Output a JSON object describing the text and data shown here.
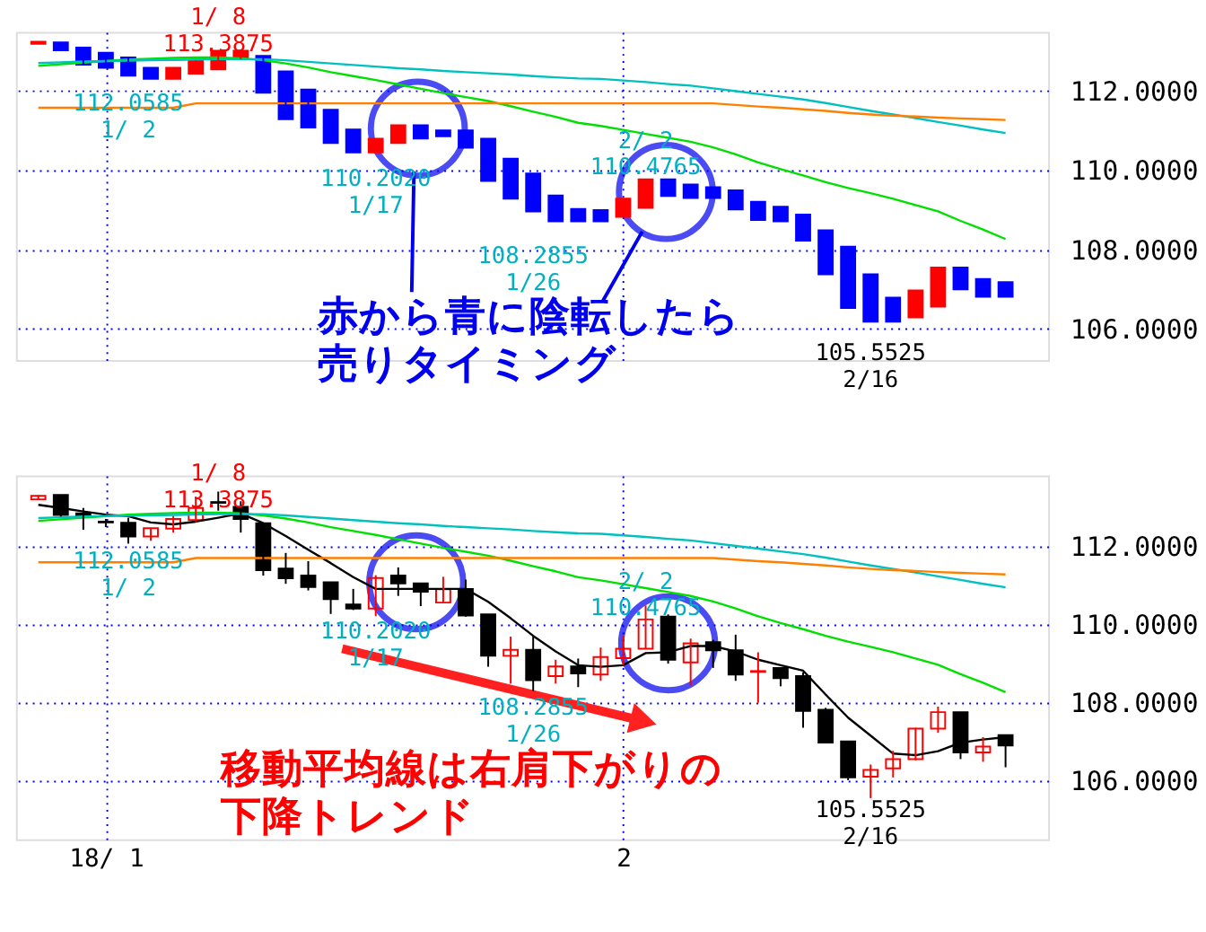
{
  "chart_data": [
    {
      "type": "candlestick",
      "categories": [
        null,
        null,
        null,
        null,
        null,
        null,
        null,
        null,
        null,
        null,
        null,
        null,
        null,
        null,
        null,
        null,
        null,
        null,
        null,
        null,
        null,
        null,
        null,
        null,
        null,
        null,
        null,
        null,
        null,
        null,
        null,
        null,
        null,
        null,
        null,
        null,
        null,
        null,
        null,
        null,
        null,
        null,
        null,
        null
      ],
      "ohlc": [
        [
          113.2,
          113.25,
          113.2,
          113.25
        ],
        [
          113.23,
          113.23,
          113.03,
          113.03
        ],
        [
          113.1,
          113.1,
          112.67,
          112.67
        ],
        [
          112.97,
          112.97,
          112.59,
          112.59
        ],
        [
          112.85,
          112.85,
          112.39,
          112.39
        ],
        [
          112.59,
          112.59,
          112.31,
          112.31
        ],
        [
          112.31,
          112.59,
          112.31,
          112.59
        ],
        [
          112.44,
          112.78,
          112.44,
          112.78
        ],
        [
          112.55,
          113.02,
          112.55,
          113.02
        ],
        [
          112.81,
          113.02,
          112.81,
          113.02
        ],
        [
          112.89,
          112.89,
          111.96,
          111.96
        ],
        [
          112.5,
          112.5,
          111.29,
          111.29
        ],
        [
          112.04,
          112.04,
          111.08,
          111.08
        ],
        [
          111.53,
          111.53,
          110.69,
          110.69
        ],
        [
          111.03,
          111.03,
          110.45,
          110.45
        ],
        [
          110.45,
          110.8,
          110.45,
          110.8
        ],
        [
          110.69,
          111.14,
          110.69,
          111.14
        ],
        [
          111.14,
          111.14,
          110.8,
          110.8
        ],
        [
          111.01,
          111.01,
          110.86,
          110.86
        ],
        [
          111.01,
          111.01,
          110.57,
          110.57
        ],
        [
          110.8,
          110.8,
          109.73,
          109.73
        ],
        [
          110.29,
          110.29,
          109.28,
          109.28
        ],
        [
          109.92,
          109.92,
          108.96,
          108.96
        ],
        [
          109.36,
          109.36,
          108.71,
          108.71
        ],
        [
          109.02,
          109.02,
          108.71,
          108.71
        ],
        [
          108.99,
          108.99,
          108.71,
          108.71
        ],
        [
          108.82,
          109.28,
          108.82,
          109.28
        ],
        [
          109.05,
          109.77,
          109.05,
          109.77
        ],
        [
          109.77,
          109.77,
          109.35,
          109.35
        ],
        [
          109.64,
          109.64,
          109.3,
          109.3
        ],
        [
          109.57,
          109.57,
          109.3,
          109.3
        ],
        [
          109.49,
          109.49,
          109.01,
          109.01
        ],
        [
          109.2,
          109.2,
          108.74,
          108.74
        ],
        [
          109.08,
          109.08,
          108.71,
          108.71
        ],
        [
          108.88,
          108.88,
          108.22,
          108.22
        ],
        [
          108.48,
          108.48,
          107.37,
          107.37
        ],
        [
          108.07,
          108.07,
          106.52,
          106.52
        ],
        [
          107.37,
          107.37,
          106.17,
          106.17
        ],
        [
          106.78,
          106.78,
          106.17,
          106.17
        ],
        [
          106.28,
          106.96,
          106.28,
          106.96
        ],
        [
          106.55,
          107.54,
          106.55,
          107.54
        ],
        [
          107.54,
          107.54,
          106.99,
          106.99
        ],
        [
          107.25,
          107.25,
          106.8,
          106.8
        ],
        [
          107.17,
          107.17,
          106.8,
          106.8
        ]
      ],
      "colors": [
        "#ff0000",
        "#0000ff",
        "#0000ff",
        "#0000ff",
        "#0000ff",
        "#0000ff",
        "#ff0000",
        "#ff0000",
        "#ff0000",
        "#ff0000",
        "#0000ff",
        "#0000ff",
        "#0000ff",
        "#0000ff",
        "#0000ff",
        "#ff0000",
        "#ff0000",
        "#0000ff",
        "#0000ff",
        "#0000ff",
        "#0000ff",
        "#0000ff",
        "#0000ff",
        "#0000ff",
        "#0000ff",
        "#0000ff",
        "#ff0000",
        "#ff0000",
        "#0000ff",
        "#0000ff",
        "#0000ff",
        "#0000ff",
        "#0000ff",
        "#0000ff",
        "#0000ff",
        "#0000ff",
        "#0000ff",
        "#0000ff",
        "#0000ff",
        "#ff0000",
        "#ff0000",
        "#0000ff",
        "#0000ff",
        "#0000ff"
      ],
      "series": [
        {
          "type": "line",
          "color": "#00e000",
          "values": [
            112.64,
            112.68,
            112.72,
            112.76,
            112.8,
            112.82,
            112.84,
            112.85,
            112.85,
            112.83,
            112.78,
            112.7,
            112.6,
            112.48,
            112.38,
            112.28,
            112.17,
            112.06,
            111.95,
            111.85,
            111.75,
            111.62,
            111.48,
            111.35,
            111.2,
            111.12,
            111.02,
            110.92,
            110.82,
            110.72,
            110.58,
            110.4,
            110.2,
            110.03,
            109.87,
            109.7,
            109.55,
            109.42,
            109.28,
            109.12,
            108.96,
            108.72,
            108.5,
            108.26
          ]
        },
        {
          "type": "line",
          "color": "#00c0c0",
          "values": [
            112.71,
            112.73,
            112.75,
            112.76,
            112.77,
            112.78,
            112.79,
            112.8,
            112.81,
            112.81,
            112.81,
            112.78,
            112.74,
            112.7,
            112.66,
            112.62,
            112.58,
            112.55,
            112.51,
            112.48,
            112.45,
            112.42,
            112.38,
            112.35,
            112.32,
            112.31,
            112.27,
            112.23,
            112.18,
            112.14,
            112.07,
            112.0,
            111.93,
            111.86,
            111.79,
            111.7,
            111.6,
            111.5,
            111.41,
            111.32,
            111.22,
            111.13,
            111.03,
            110.94
          ]
        },
        {
          "type": "line",
          "color": "#ff8000",
          "values": [
            111.58,
            111.58,
            111.58,
            111.58,
            111.58,
            111.58,
            111.58,
            111.69,
            111.69,
            111.69,
            111.69,
            111.69,
            111.69,
            111.69,
            111.69,
            111.69,
            111.69,
            111.69,
            111.69,
            111.69,
            111.69,
            111.69,
            111.69,
            111.69,
            111.69,
            111.69,
            111.69,
            111.69,
            111.69,
            111.69,
            111.69,
            111.65,
            111.61,
            111.58,
            111.54,
            111.5,
            111.45,
            111.41,
            111.38,
            111.36,
            111.33,
            111.31,
            111.29,
            111.27
          ]
        }
      ],
      "ylim": [
        105.2,
        113.5
      ],
      "yticks": [
        {
          "value": 106,
          "label": "106.0000"
        },
        {
          "value": 108,
          "label": "108.0000"
        },
        {
          "value": 110,
          "label": "110.0000"
        },
        {
          "value": 112,
          "label": "112.0000"
        }
      ],
      "grid": true,
      "tick_labels": "y",
      "annotations": [
        "1/ 8\n113.3875",
        "112.0585\n1/ 2",
        "110.2020\n1/17",
        "108.2855\n1/26",
        "2/ 2\n110.4765",
        "105.5525\n2/16",
        "赤から青に陰転したら売りタイミング"
      ]
    },
    {
      "type": "candlestick",
      "categories": [
        null,
        null,
        null,
        "18/ 1",
        null,
        null,
        null,
        null,
        null,
        null,
        null,
        null,
        null,
        null,
        null,
        null,
        null,
        null,
        null,
        null,
        null,
        null,
        null,
        null,
        null,
        null,
        "2",
        null,
        null,
        null,
        null,
        null,
        null,
        null,
        null,
        null,
        null,
        null,
        null,
        null,
        null,
        null,
        null,
        null
      ],
      "ohlc": [
        [
          113.19,
          113.3,
          113.17,
          113.28
        ],
        [
          113.3,
          113.3,
          112.75,
          112.79
        ],
        [
          112.83,
          112.97,
          112.41,
          112.76
        ],
        [
          112.62,
          112.69,
          112.48,
          112.6
        ],
        [
          112.59,
          112.72,
          112.0585,
          112.24
        ],
        [
          112.24,
          112.45,
          112.13,
          112.45
        ],
        [
          112.44,
          112.76,
          112.34,
          112.69
        ],
        [
          112.66,
          113.26,
          112.62,
          112.97
        ],
        [
          113.12,
          113.3875,
          112.9,
          113.1
        ],
        [
          113.0,
          113.14,
          112.34,
          112.69
        ],
        [
          112.58,
          112.58,
          111.24,
          111.38
        ],
        [
          111.42,
          111.82,
          111.03,
          111.17
        ],
        [
          111.24,
          111.61,
          110.86,
          110.95
        ],
        [
          111.07,
          111.07,
          110.26,
          110.64
        ],
        [
          110.5,
          110.9,
          110.36,
          110.4
        ],
        [
          110.4,
          111.25,
          110.202,
          111.18
        ],
        [
          111.24,
          111.45,
          110.72,
          111.04
        ],
        [
          111.04,
          111.04,
          110.46,
          110.83
        ],
        [
          110.55,
          111.21,
          110.55,
          110.89
        ],
        [
          110.9,
          111.14,
          110.19,
          110.22
        ],
        [
          110.25,
          110.25,
          108.91,
          109.19
        ],
        [
          109.19,
          109.68,
          108.48,
          109.34
        ],
        [
          109.34,
          109.68,
          108.2855,
          108.57
        ],
        [
          108.67,
          109.09,
          108.48,
          108.92
        ],
        [
          108.92,
          109.12,
          108.39,
          108.74
        ],
        [
          108.71,
          109.4,
          108.55,
          109.16
        ],
        [
          109.13,
          109.7,
          108.95,
          109.37
        ],
        [
          109.37,
          110.4765,
          109.37,
          110.12
        ],
        [
          110.19,
          110.25,
          108.99,
          109.09
        ],
        [
          109.02,
          109.63,
          108.43,
          109.51
        ],
        [
          109.54,
          109.6,
          108.88,
          109.33
        ],
        [
          109.33,
          109.73,
          108.55,
          108.71
        ],
        [
          108.78,
          109.28,
          107.99,
          108.8
        ],
        [
          108.88,
          108.88,
          108.41,
          108.62
        ],
        [
          108.67,
          108.77,
          107.35,
          107.78
        ],
        [
          107.81,
          107.86,
          106.97,
          106.97
        ],
        [
          107.0,
          107.0,
          106.01,
          106.08
        ],
        [
          106.1,
          106.41,
          105.5525,
          106.27
        ],
        [
          106.31,
          106.76,
          106.08,
          106.55
        ],
        [
          106.55,
          107.35,
          106.52,
          107.33
        ],
        [
          107.33,
          107.89,
          107.22,
          107.75
        ],
        [
          107.75,
          107.75,
          106.55,
          106.72
        ],
        [
          106.72,
          107.11,
          106.48,
          106.87
        ],
        [
          107.16,
          107.16,
          106.34,
          106.9
        ]
      ],
      "colors": [
        "#ff0000",
        "#000000",
        "#000000",
        "#000000",
        "#000000",
        "#ff0000",
        "#ff0000",
        "#ff0000",
        "#000000",
        "#000000",
        "#000000",
        "#000000",
        "#000000",
        "#000000",
        "#000000",
        "#ff0000",
        "#000000",
        "#000000",
        "#ff0000",
        "#000000",
        "#000000",
        "#ff0000",
        "#000000",
        "#ff0000",
        "#000000",
        "#ff0000",
        "#ff0000",
        "#ff0000",
        "#000000",
        "#ff0000",
        "#000000",
        "#000000",
        "#ff0000",
        "#000000",
        "#000000",
        "#000000",
        "#000000",
        "#ff0000",
        "#ff0000",
        "#ff0000",
        "#ff0000",
        "#000000",
        "#ff0000",
        "#000000"
      ],
      "series": [
        {
          "type": "line",
          "color": "#000000",
          "values": [
            113.05,
            112.97,
            112.88,
            112.8,
            112.76,
            112.6,
            112.55,
            112.62,
            112.72,
            112.83,
            112.58,
            112.25,
            111.9,
            111.56,
            111.2,
            110.9,
            110.9,
            110.9,
            110.9,
            110.9,
            110.57,
            110.15,
            109.7,
            109.3,
            108.95,
            108.91,
            108.95,
            109.26,
            109.28,
            109.44,
            109.44,
            109.3,
            109.09,
            108.95,
            108.81,
            108.2,
            107.61,
            107.15,
            106.69,
            106.65,
            106.75,
            106.97,
            107.05,
            107.11
          ]
        },
        {
          "type": "line",
          "color": "#00e000",
          "values": [
            112.64,
            112.68,
            112.72,
            112.76,
            112.8,
            112.82,
            112.84,
            112.85,
            112.85,
            112.83,
            112.78,
            112.7,
            112.6,
            112.48,
            112.38,
            112.28,
            112.17,
            112.06,
            111.95,
            111.85,
            111.75,
            111.62,
            111.48,
            111.35,
            111.2,
            111.12,
            111.02,
            110.92,
            110.82,
            110.72,
            110.58,
            110.4,
            110.2,
            110.03,
            109.87,
            109.7,
            109.55,
            109.42,
            109.28,
            109.12,
            108.96,
            108.72,
            108.5,
            108.26
          ]
        },
        {
          "type": "line",
          "color": "#00c0c0",
          "values": [
            112.71,
            112.73,
            112.75,
            112.76,
            112.77,
            112.78,
            112.79,
            112.8,
            112.81,
            112.81,
            112.81,
            112.78,
            112.74,
            112.7,
            112.66,
            112.62,
            112.58,
            112.55,
            112.51,
            112.48,
            112.45,
            112.42,
            112.38,
            112.35,
            112.32,
            112.31,
            112.27,
            112.23,
            112.18,
            112.14,
            112.07,
            112.0,
            111.93,
            111.86,
            111.79,
            111.7,
            111.6,
            111.5,
            111.41,
            111.32,
            111.22,
            111.13,
            111.03,
            110.94
          ]
        },
        {
          "type": "line",
          "color": "#ff8000",
          "values": [
            111.58,
            111.58,
            111.58,
            111.58,
            111.58,
            111.58,
            111.58,
            111.69,
            111.69,
            111.69,
            111.69,
            111.69,
            111.69,
            111.69,
            111.69,
            111.69,
            111.69,
            111.69,
            111.69,
            111.69,
            111.69,
            111.69,
            111.69,
            111.69,
            111.69,
            111.69,
            111.69,
            111.69,
            111.69,
            111.69,
            111.69,
            111.65,
            111.61,
            111.58,
            111.54,
            111.5,
            111.45,
            111.41,
            111.38,
            111.36,
            111.33,
            111.31,
            111.29,
            111.27
          ]
        }
      ],
      "ylim": [
        104.5,
        113.8
      ],
      "yticks": [
        {
          "value": 106,
          "label": "106.0000"
        },
        {
          "value": 108,
          "label": "108.0000"
        },
        {
          "value": 110,
          "label": "110.0000"
        },
        {
          "value": 112,
          "label": "112.0000"
        }
      ],
      "grid": true,
      "annotations": [
        "1/ 8\n113.3875",
        "112.0585\n1/ 2",
        "110.2020\n1/17",
        "108.2855\n1/26",
        "2/ 2\n110.4765",
        "105.5525\n2/16",
        "移動平均線は右肩下がりの下降トレンド"
      ]
    }
  ]
}
